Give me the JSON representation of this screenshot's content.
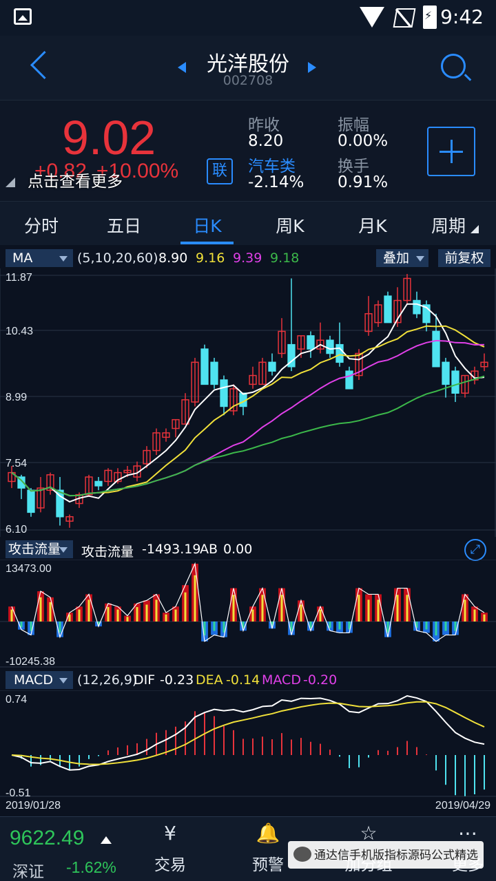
{
  "status": {
    "time": "9:42"
  },
  "header": {
    "title": "光洋股份",
    "code": "002708"
  },
  "quote": {
    "price": "9.02",
    "change": "+0.82",
    "change_pct": "+10.00%",
    "more_tip": "点击查看更多",
    "link_label": "联",
    "prev_close_label": "昨收",
    "prev_close": "8.20",
    "sector_label": "汽车类",
    "sector_change": "-2.14%",
    "amplitude_label": "振幅",
    "amplitude": "0.00%",
    "turnover_label": "换手",
    "turnover": "0.91%"
  },
  "tabs": [
    "分时",
    "五日",
    "日K",
    "周K",
    "月K",
    "周期"
  ],
  "active_tab": 2,
  "ma_bar": {
    "selector": "MA",
    "params": "(5,10,20,60)",
    "ma5": "8.90",
    "ma10": "9.16",
    "ma20": "9.39",
    "ma60": "9.18",
    "overlay_button": "叠加",
    "adjust_button": "前复权"
  },
  "price_axis": {
    "top": "11.87",
    "l2": "10.43",
    "l3": "8.99",
    "l4": "7.54",
    "bottom": "6.10"
  },
  "flow_bar": {
    "selector": "攻击流量",
    "name": "攻击流量",
    "value": "-1493.19",
    "ab_label": "AB",
    "ab_value": "0.00"
  },
  "flow_axis": {
    "top": "13473.00",
    "bottom": "-10245.38"
  },
  "macd_bar": {
    "selector": "MACD",
    "params": "(12,26,9)",
    "dif_label": "DIF",
    "dif": "-0.23",
    "dea_label": "DEA",
    "dea": "-0.14",
    "macd_label": "MACD",
    "macd": "-0.20"
  },
  "macd_axis": {
    "top": "0.74",
    "bottom": "-0.51"
  },
  "dates": {
    "start": "2019/01/28",
    "end": "2019/04/29"
  },
  "colors": {
    "up": "#e8333b",
    "down": "#4fe3f0",
    "ma5": "#ffffff",
    "ma10": "#f0e03a",
    "ma20": "#e040e8",
    "ma60": "#3cb84a",
    "accent": "#2a8cff"
  },
  "chart_data": {
    "type": "candlestick",
    "y_range": [
      6.1,
      11.87
    ],
    "candles": [
      [
        7.2,
        7.4,
        7.55,
        7.05
      ],
      [
        7.3,
        7.05,
        7.35,
        6.8
      ],
      [
        7.0,
        6.5,
        7.05,
        6.4
      ],
      [
        6.6,
        7.05,
        7.3,
        6.5
      ],
      [
        7.0,
        7.35,
        7.4,
        6.9
      ],
      [
        7.0,
        6.4,
        7.3,
        6.2
      ],
      [
        6.3,
        6.4,
        6.45,
        6.15
      ],
      [
        6.7,
        6.9,
        6.95,
        6.6
      ],
      [
        6.9,
        7.3,
        7.35,
        6.85
      ],
      [
        7.2,
        7.1,
        7.3,
        7.0
      ],
      [
        7.2,
        7.45,
        7.5,
        7.1
      ],
      [
        7.2,
        7.4,
        7.5,
        7.15
      ],
      [
        7.4,
        7.45,
        7.55,
        7.3
      ],
      [
        7.3,
        7.55,
        7.65,
        7.2
      ],
      [
        7.6,
        7.9,
        8.0,
        7.5
      ],
      [
        7.9,
        8.3,
        8.4,
        7.8
      ],
      [
        8.2,
        8.3,
        8.4,
        8.1
      ],
      [
        8.4,
        8.6,
        8.6,
        8.2
      ],
      [
        8.5,
        9.05,
        9.2,
        8.5
      ],
      [
        9.0,
        9.9,
        10.0,
        8.9
      ],
      [
        10.2,
        9.4,
        10.3,
        9.4
      ],
      [
        9.9,
        9.4,
        10.0,
        9.3
      ],
      [
        9.5,
        8.9,
        9.6,
        8.7
      ],
      [
        8.8,
        9.3,
        9.4,
        8.7
      ],
      [
        9.2,
        8.9,
        9.2,
        8.7
      ],
      [
        9.4,
        9.6,
        9.8,
        9.3
      ],
      [
        9.4,
        9.9,
        10.0,
        9.4
      ],
      [
        9.9,
        9.7,
        10.1,
        9.6
      ],
      [
        10.1,
        10.6,
        10.9,
        10.0
      ],
      [
        10.3,
        9.8,
        11.8,
        9.7
      ],
      [
        10.2,
        10.5,
        10.5,
        10.0
      ],
      [
        10.5,
        10.2,
        10.6,
        10.0
      ],
      [
        10.2,
        10.4,
        10.8,
        10.1
      ],
      [
        10.4,
        10.1,
        10.5,
        10.0
      ],
      [
        10.3,
        9.9,
        10.8,
        9.8
      ],
      [
        9.7,
        9.3,
        9.8,
        9.3
      ],
      [
        9.6,
        10.1,
        10.2,
        9.5
      ],
      [
        10.6,
        11.0,
        11.4,
        10.5
      ],
      [
        10.8,
        11.2,
        11.3,
        10.7
      ],
      [
        11.4,
        10.8,
        11.5,
        10.8
      ],
      [
        10.8,
        11.3,
        11.6,
        10.7
      ],
      [
        11.3,
        11.8,
        11.9,
        11.2
      ],
      [
        11.3,
        11.0,
        11.5,
        10.9
      ],
      [
        11.2,
        10.8,
        11.3,
        10.6
      ],
      [
        10.6,
        9.8,
        11.0,
        9.8
      ],
      [
        9.9,
        9.4,
        10.0,
        9.1
      ],
      [
        9.7,
        9.2,
        9.8,
        9.0
      ],
      [
        9.2,
        9.6,
        9.6,
        9.1
      ],
      [
        9.5,
        9.7,
        9.8,
        9.4
      ],
      [
        9.8,
        9.9,
        10.1,
        9.7
      ]
    ]
  }
}
